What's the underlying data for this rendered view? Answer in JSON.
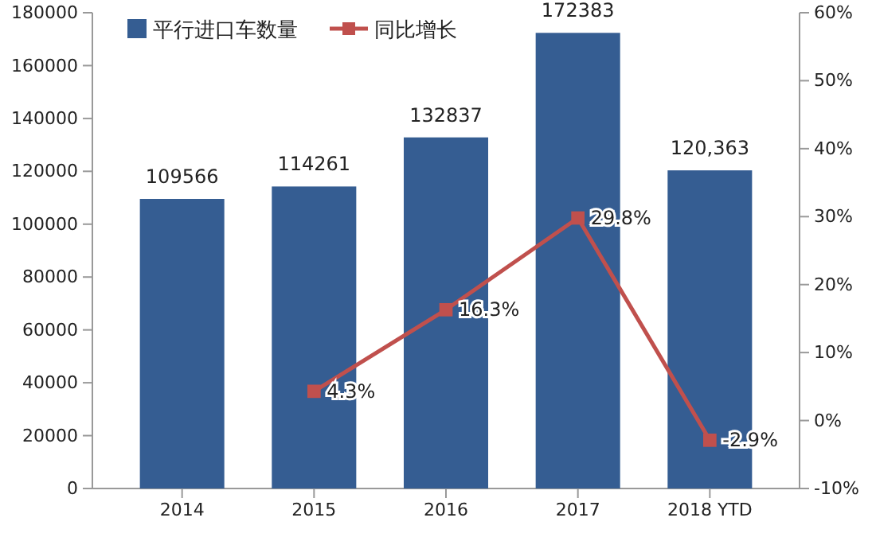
{
  "chart_data": {
    "type": "bar",
    "categories": [
      "2014",
      "2015",
      "2016",
      "2017",
      "2018 YTD"
    ],
    "series": [
      {
        "name": "平行进口车数量",
        "color": "#355d92",
        "values": [
          109566,
          114261,
          132837,
          172383,
          120363
        ],
        "value_labels": [
          "109566",
          "114261",
          "132837",
          "172383",
          "120,363"
        ]
      },
      {
        "name": "同比增长",
        "type": "line",
        "axis": "y2",
        "color": "#c0504d",
        "values": [
          null,
          4.3,
          16.3,
          29.8,
          -2.9
        ],
        "value_labels": [
          null,
          "4.3%",
          "16.3%",
          "29.8%",
          "-2.9%"
        ],
        "marker": "square"
      }
    ],
    "ylim": [
      0,
      180000
    ],
    "yticks": [
      0,
      20000,
      40000,
      60000,
      80000,
      100000,
      120000,
      140000,
      160000,
      180000
    ],
    "y2lim": [
      -10,
      60
    ],
    "y2ticks": [
      {
        "value": -10,
        "label": "-10%"
      },
      {
        "value": 0,
        "label": "0%"
      },
      {
        "value": 10,
        "label": "10%"
      },
      {
        "value": 20,
        "label": "20%"
      },
      {
        "value": 30,
        "label": "30%"
      },
      {
        "value": 40,
        "label": "40%"
      },
      {
        "value": 50,
        "label": "50%"
      },
      {
        "value": 60,
        "label": "60%"
      }
    ],
    "legend": "top",
    "grid": false
  }
}
